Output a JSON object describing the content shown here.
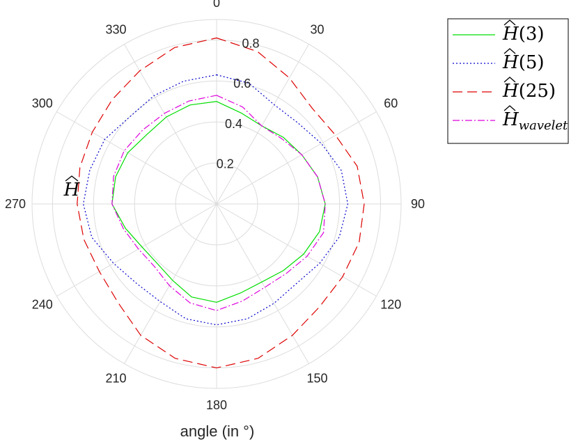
{
  "chart_data": {
    "type": "polar-line",
    "xlabel": "angle (in °)",
    "rlabel": "H",
    "angle_ticks": [
      0,
      30,
      60,
      90,
      120,
      150,
      180,
      210,
      240,
      270,
      300,
      330
    ],
    "radial_ticks": [
      0.2,
      0.4,
      0.6,
      0.8
    ],
    "rlim": [
      0,
      0.9
    ],
    "angle_zero": "top",
    "angle_direction": "clockwise",
    "grid": true,
    "legend_position": "outside-top-right",
    "theta_deg": [
      0,
      15,
      30,
      45,
      60,
      75,
      90,
      105,
      120,
      135,
      150,
      165,
      180,
      195,
      210,
      225,
      240,
      255,
      270,
      285,
      300,
      315,
      330,
      345
    ],
    "series": [
      {
        "name": "H(3)",
        "base": "H",
        "sub": "(3)",
        "color": "#00dd00",
        "dash": "",
        "values": [
          0.5,
          0.46,
          0.44,
          0.46,
          0.48,
          0.51,
          0.53,
          0.52,
          0.49,
          0.46,
          0.44,
          0.45,
          0.48,
          0.47,
          0.43,
          0.41,
          0.42,
          0.46,
          0.51,
          0.51,
          0.5,
          0.48,
          0.49,
          0.5
        ]
      },
      {
        "name": "H(5)",
        "base": "H",
        "sub": "(5)",
        "color": "#0000cc",
        "dash": "2,3",
        "values": [
          0.63,
          0.61,
          0.56,
          0.56,
          0.59,
          0.63,
          0.64,
          0.62,
          0.58,
          0.55,
          0.56,
          0.58,
          0.59,
          0.58,
          0.55,
          0.55,
          0.58,
          0.63,
          0.65,
          0.64,
          0.63,
          0.6,
          0.61,
          0.62
        ]
      },
      {
        "name": "H(25)",
        "base": "H",
        "sub": "(25)",
        "color": "#dd0000",
        "dash": "14,7",
        "values": [
          0.81,
          0.77,
          0.71,
          0.66,
          0.67,
          0.71,
          0.72,
          0.72,
          0.71,
          0.71,
          0.74,
          0.78,
          0.8,
          0.78,
          0.74,
          0.68,
          0.66,
          0.67,
          0.68,
          0.69,
          0.7,
          0.72,
          0.75,
          0.79
        ]
      },
      {
        "name": "H_wavelet",
        "base": "H",
        "sub": "wavelet",
        "color": "#dd00dd",
        "dash": "10,3,2,3",
        "values": [
          0.53,
          0.49,
          0.44,
          0.45,
          0.48,
          0.51,
          0.53,
          0.54,
          0.51,
          0.48,
          0.47,
          0.49,
          0.52,
          0.5,
          0.46,
          0.43,
          0.44,
          0.47,
          0.51,
          0.52,
          0.52,
          0.51,
          0.51,
          0.52
        ]
      }
    ]
  }
}
